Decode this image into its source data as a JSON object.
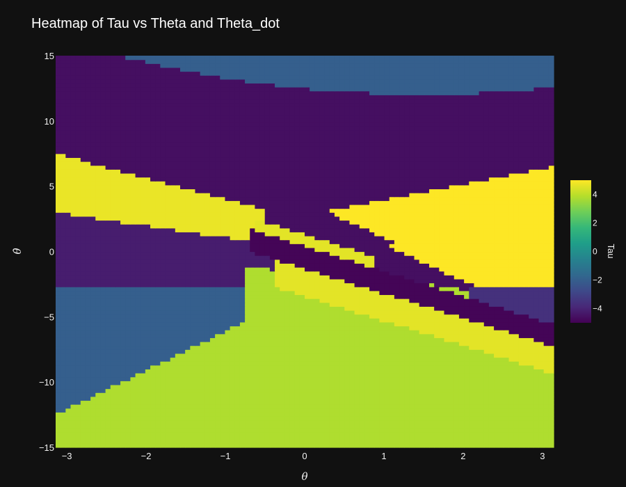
{
  "chart_data": {
    "type": "heatmap",
    "title": "Heatmap of Tau vs Theta and Theta_dot",
    "xlabel": "θ",
    "ylabel": "θ̇",
    "xlim": [
      -3.14159,
      3.14159
    ],
    "ylim": [
      -15,
      15
    ],
    "x_ticks": [
      "−3",
      "−2",
      "−1",
      "0",
      "1",
      "2",
      "3"
    ],
    "x_tick_values": [
      -3,
      -2,
      -1,
      0,
      1,
      2,
      3
    ],
    "y_ticks": [
      "−15",
      "−10",
      "−5",
      "0",
      "5",
      "10",
      "15"
    ],
    "y_tick_values": [
      -15,
      -10,
      -5,
      0,
      5,
      10,
      15
    ],
    "grid": false,
    "grid_resolution": [
      100,
      100
    ],
    "colorscale": "Viridis",
    "colorbar": {
      "title": "Tau",
      "range": [
        -5,
        5
      ],
      "tick_labels": [
        "−4",
        "−2",
        "0",
        "2",
        "4"
      ],
      "tick_values": [
        -4,
        -2,
        0,
        2,
        4
      ]
    },
    "regions": [
      {
        "label": "upper-band-top",
        "tau": -2.0
      },
      {
        "label": "upper-band",
        "tau": -4.6
      },
      {
        "label": "left-upper-yellow-band",
        "tau": 4.7
      },
      {
        "label": "left-mid-band",
        "tau": -4.2
      },
      {
        "label": "left-lower-band",
        "tau": -2.0
      },
      {
        "label": "diagonal-yellow-band",
        "tau": 4.6
      },
      {
        "label": "diagonal-dark-band",
        "tau": -4.9
      },
      {
        "label": "right-yellow-lobe",
        "tau": 5.0
      },
      {
        "label": "right-lower-band",
        "tau": -3.6
      },
      {
        "label": "bottom-green-region",
        "tau": 3.8
      }
    ]
  },
  "colors": {
    "background": "#111111",
    "text": "#f2f2f2",
    "viridis_stops": [
      "#440154",
      "#482878",
      "#3e4989",
      "#31688e",
      "#26828e",
      "#1f9e89",
      "#35b779",
      "#6ece58",
      "#b5de2b",
      "#fde725"
    ]
  }
}
